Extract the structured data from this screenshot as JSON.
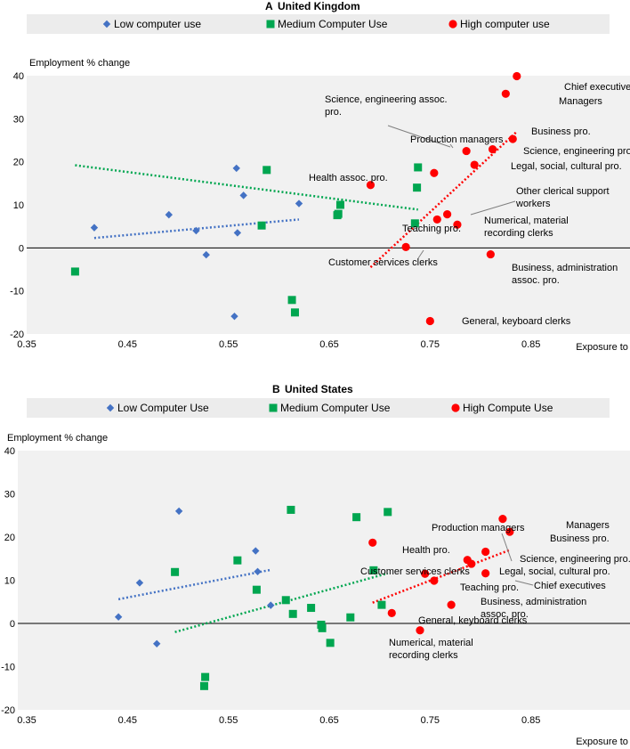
{
  "colors": {
    "low": "#4472c4",
    "medium": "#00a650",
    "high": "#ff0000",
    "plot_bg": "#f1f1f1",
    "legend_bg": "#ececec",
    "grid_line": "#000000"
  },
  "chart_data": [
    {
      "type": "scatter",
      "panel_letter": "A",
      "title": "United Kingdom",
      "ylabel": "Employment % change",
      "xlabel": "Exposure to AI",
      "xlim": [
        0.35,
        0.95
      ],
      "ylim": [
        -20,
        40
      ],
      "xticks": [
        "0.35",
        "0.45",
        "0.55",
        "0.65",
        "0.75",
        "0.85"
      ],
      "yticks": [
        "40",
        "30",
        "20",
        "10",
        "0",
        "-10",
        "-20"
      ],
      "series": [
        {
          "name": "Low computer use",
          "key": "low",
          "marker": "diamond",
          "points": [
            [
              0.417,
              4.7
            ],
            [
              0.491,
              7.7
            ],
            [
              0.518,
              4.0
            ],
            [
              0.528,
              -1.6
            ],
            [
              0.556,
              -15.9
            ],
            [
              0.558,
              18.5
            ],
            [
              0.559,
              3.5
            ],
            [
              0.565,
              12.2
            ],
            [
              0.62,
              10.3
            ]
          ],
          "trend": [
            [
              0.417,
              2.3
            ],
            [
              0.62,
              6.6
            ]
          ]
        },
        {
          "name": "Medium Computer Use",
          "key": "medium",
          "marker": "square",
          "points": [
            [
              0.398,
              -5.5
            ],
            [
              0.583,
              5.2
            ],
            [
              0.588,
              18.1
            ],
            [
              0.613,
              -12.1
            ],
            [
              0.616,
              -15.0
            ],
            [
              0.658,
              7.6
            ],
            [
              0.659,
              7.9
            ],
            [
              0.661,
              10.0
            ],
            [
              0.735,
              5.7
            ],
            [
              0.737,
              14.0
            ],
            [
              0.738,
              18.7
            ]
          ],
          "trend": [
            [
              0.398,
              19.2
            ],
            [
              0.738,
              8.9
            ]
          ]
        },
        {
          "name": "High computer use",
          "key": "high",
          "marker": "circle",
          "points": [
            [
              0.691,
              14.6
            ],
            [
              0.726,
              0.2
            ],
            [
              0.754,
              17.4
            ],
            [
              0.757,
              6.6
            ],
            [
              0.767,
              7.8
            ],
            [
              0.777,
              5.4
            ],
            [
              0.786,
              22.5
            ],
            [
              0.794,
              19.3
            ],
            [
              0.81,
              -1.5
            ],
            [
              0.812,
              22.9
            ],
            [
              0.825,
              35.8
            ],
            [
              0.832,
              25.3
            ],
            [
              0.836,
              39.9
            ],
            [
              0.75,
              -17.0
            ]
          ],
          "trend": [
            [
              0.691,
              -4.5
            ],
            [
              0.836,
              27.0
            ]
          ]
        }
      ],
      "annotations": [
        {
          "text": [
            "Chief executives"
          ]
        },
        {
          "text": [
            "Managers"
          ]
        },
        {
          "text": [
            "Business pro."
          ]
        },
        {
          "text": [
            "Science, engineering assoc.",
            "pro."
          ]
        },
        {
          "text": [
            "Production managers"
          ]
        },
        {
          "text": [
            "Science, engineering pro."
          ]
        },
        {
          "text": [
            "Legal, social, cultural pro."
          ]
        },
        {
          "text": [
            "Health assoc. pro."
          ]
        },
        {
          "text": [
            "Other clerical support",
            "workers"
          ]
        },
        {
          "text": [
            "Teaching pro."
          ]
        },
        {
          "text": [
            "Numerical, material",
            "recording clerks"
          ]
        },
        {
          "text": [
            "Customer services clerks"
          ]
        },
        {
          "text": [
            "Business, administration",
            "assoc. pro."
          ]
        },
        {
          "text": [
            "General, keyboard clerks"
          ]
        }
      ]
    },
    {
      "type": "scatter",
      "panel_letter": "B",
      "title": "United States",
      "ylabel": "Employment % change",
      "xlabel": "Exposure to AI",
      "xlim": [
        0.35,
        0.95
      ],
      "ylim": [
        -20,
        40
      ],
      "xticks": [
        "0.35",
        "0.45",
        "0.55",
        "0.65",
        "0.75",
        "0.85"
      ],
      "yticks": [
        "40",
        "30",
        "20",
        "10",
        "0",
        "-10",
        "-20"
      ],
      "series": [
        {
          "name": "Low Computer Use",
          "key": "low",
          "marker": "diamond",
          "points": [
            [
              0.441,
              1.5
            ],
            [
              0.462,
              9.4
            ],
            [
              0.479,
              -4.7
            ],
            [
              0.501,
              26.0
            ],
            [
              0.577,
              16.8
            ],
            [
              0.579,
              12.0
            ],
            [
              0.592,
              4.2
            ]
          ],
          "trend": [
            [
              0.441,
              5.6
            ],
            [
              0.592,
              12.4
            ]
          ]
        },
        {
          "name": "Medium Computer Use",
          "key": "medium",
          "marker": "square",
          "points": [
            [
              0.497,
              11.9
            ],
            [
              0.526,
              -14.5
            ],
            [
              0.527,
              -12.4
            ],
            [
              0.559,
              14.6
            ],
            [
              0.578,
              7.8
            ],
            [
              0.607,
              5.4
            ],
            [
              0.612,
              26.3
            ],
            [
              0.614,
              2.2
            ],
            [
              0.632,
              3.6
            ],
            [
              0.642,
              -0.3
            ],
            [
              0.643,
              -1.1
            ],
            [
              0.651,
              -4.5
            ],
            [
              0.671,
              1.4
            ],
            [
              0.677,
              24.6
            ],
            [
              0.694,
              12.3
            ],
            [
              0.702,
              4.3
            ],
            [
              0.708,
              25.8
            ]
          ],
          "trend": [
            [
              0.497,
              -2.0
            ],
            [
              0.708,
              11.6
            ]
          ]
        },
        {
          "name": "High Compute Use",
          "key": "high",
          "marker": "circle",
          "points": [
            [
              0.693,
              18.7
            ],
            [
              0.712,
              2.4
            ],
            [
              0.74,
              -1.6
            ],
            [
              0.745,
              11.5
            ],
            [
              0.754,
              9.9
            ],
            [
              0.771,
              4.3
            ],
            [
              0.787,
              14.7
            ],
            [
              0.791,
              13.8
            ],
            [
              0.805,
              11.6
            ],
            [
              0.805,
              16.6
            ],
            [
              0.822,
              24.2
            ],
            [
              0.829,
              21.2
            ]
          ],
          "trend": [
            [
              0.693,
              4.8
            ],
            [
              0.829,
              17.0
            ]
          ]
        }
      ],
      "annotations": [
        {
          "text": [
            "Production managers"
          ]
        },
        {
          "text": [
            "Managers"
          ]
        },
        {
          "text": [
            "Business pro."
          ]
        },
        {
          "text": [
            "Health pro."
          ]
        },
        {
          "text": [
            "Science, engineering pro."
          ]
        },
        {
          "text": [
            "Customer services clerks"
          ]
        },
        {
          "text": [
            "Legal, social, cultural pro."
          ]
        },
        {
          "text": [
            "Teaching pro."
          ]
        },
        {
          "text": [
            "Chief executives"
          ]
        },
        {
          "text": [
            "Business, administration",
            "assoc. pro."
          ]
        },
        {
          "text": [
            "General, keyboard clerks"
          ]
        },
        {
          "text": [
            "Numerical, material",
            "recording clerks"
          ]
        }
      ]
    }
  ]
}
